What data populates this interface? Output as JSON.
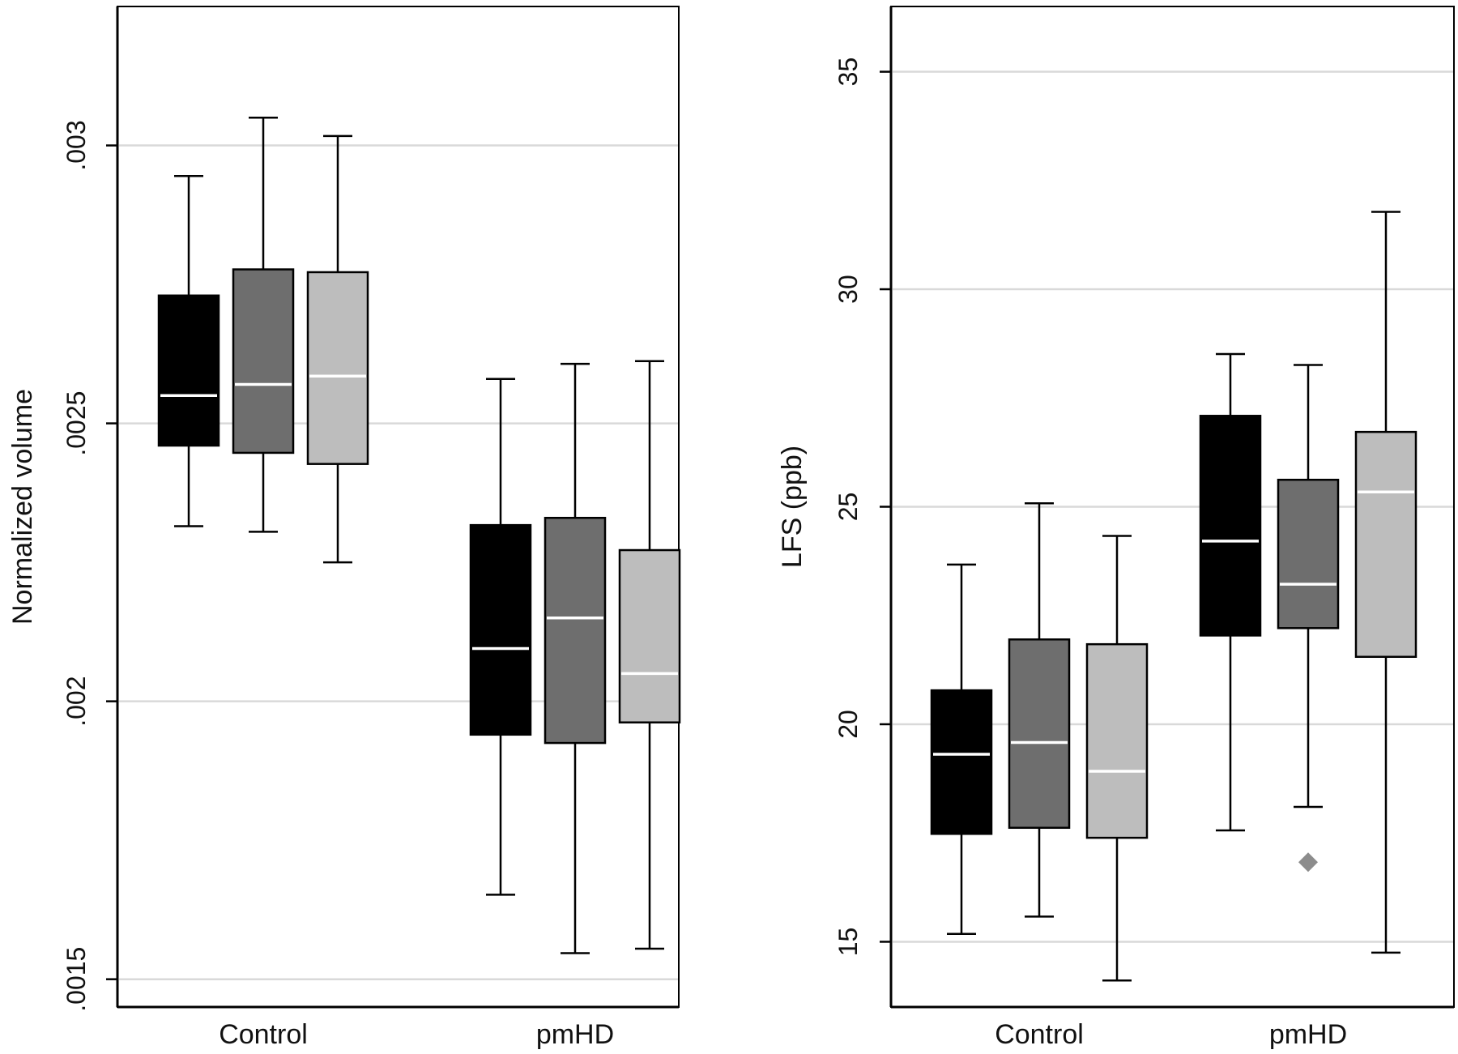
{
  "chart_data": [
    {
      "type": "box",
      "ylabel": "Normalized volume",
      "categories": [
        "Control",
        "pmHD"
      ],
      "ylim": [
        0.00145,
        0.00325
      ],
      "yticks": [
        0.0015,
        0.002,
        0.0025,
        0.003
      ],
      "ytick_labels": [
        ".0015",
        ".002",
        ".0025",
        ".003"
      ],
      "grid": true,
      "box_colors": [
        "#000000",
        "#6e6e6e",
        "#bdbdbd"
      ],
      "groups": [
        {
          "category": "Control",
          "boxes": [
            {
              "whisker_low": 0.002315,
              "q1": 0.00246,
              "median": 0.00255,
              "q3": 0.00273,
              "whisker_high": 0.002945
            },
            {
              "whisker_low": 0.002305,
              "q1": 0.002447,
              "median": 0.00257,
              "q3": 0.002777,
              "whisker_high": 0.00305
            },
            {
              "whisker_low": 0.00225,
              "q1": 0.002427,
              "median": 0.002585,
              "q3": 0.002772,
              "whisker_high": 0.003017
            }
          ]
        },
        {
          "category": "pmHD",
          "boxes": [
            {
              "whisker_low": 0.001652,
              "q1": 0.00194,
              "median": 0.002095,
              "q3": 0.002317,
              "whisker_high": 0.00258
            },
            {
              "whisker_low": 0.001547,
              "q1": 0.001925,
              "median": 0.00215,
              "q3": 0.00233,
              "whisker_high": 0.002607
            },
            {
              "whisker_low": 0.001555,
              "q1": 0.001962,
              "median": 0.00205,
              "q3": 0.002272,
              "whisker_high": 0.002612
            }
          ]
        }
      ]
    },
    {
      "type": "box",
      "ylabel": "LFS (ppb)",
      "categories": [
        "Control",
        "pmHD"
      ],
      "ylim": [
        13.5,
        36.5
      ],
      "yticks": [
        15,
        20,
        25,
        30,
        35
      ],
      "ytick_labels": [
        "15",
        "20",
        "25",
        "30",
        "35"
      ],
      "grid": true,
      "box_colors": [
        "#000000",
        "#6e6e6e",
        "#bdbdbd"
      ],
      "outlier_color": "#8c8c8c",
      "groups": [
        {
          "category": "Control",
          "boxes": [
            {
              "whisker_low": 15.18,
              "q1": 17.48,
              "median": 19.31,
              "q3": 20.78,
              "whisker_high": 23.67
            },
            {
              "whisker_low": 15.58,
              "q1": 17.62,
              "median": 19.58,
              "q3": 21.95,
              "whisker_high": 25.08
            },
            {
              "whisker_low": 14.11,
              "q1": 17.39,
              "median": 18.92,
              "q3": 21.84,
              "whisker_high": 24.33
            }
          ]
        },
        {
          "category": "pmHD",
          "boxes": [
            {
              "whisker_low": 17.56,
              "q1": 22.04,
              "median": 24.21,
              "q3": 27.09,
              "whisker_high": 28.51
            },
            {
              "whisker_low": 18.1,
              "q1": 22.21,
              "median": 23.22,
              "q3": 25.62,
              "whisker_high": 28.26,
              "outliers": [
                16.83
              ]
            },
            {
              "whisker_low": 14.75,
              "q1": 21.55,
              "median": 25.34,
              "q3": 26.72,
              "whisker_high": 31.78
            }
          ]
        }
      ]
    }
  ]
}
